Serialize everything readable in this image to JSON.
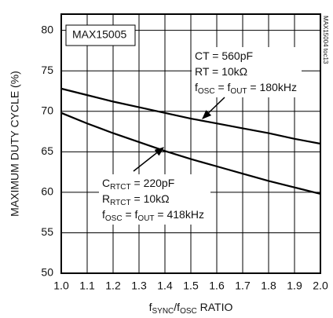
{
  "chart_data": {
    "type": "line",
    "ylabel": "MAXIMUM DUTY CYCLE (%)",
    "xlabel": [
      {
        "text": "f",
        "sub": false
      },
      {
        "text": "SYNC",
        "sub": true
      },
      {
        "text": "/f",
        "sub": false
      },
      {
        "text": "OSC",
        "sub": true
      },
      {
        "text": " RATIO",
        "sub": false
      }
    ],
    "label_box": "MAX15005",
    "side_note": "MAX15004 toc13",
    "x": [
      1.0,
      1.1,
      1.2,
      1.3,
      1.4,
      1.5,
      1.6,
      1.7,
      1.8,
      1.9,
      2.0
    ],
    "series": [
      {
        "color": "#000000",
        "values": [
          72.8,
          72.0,
          71.2,
          70.5,
          69.8,
          69.1,
          68.5,
          67.9,
          67.3,
          66.6,
          66.0
        ]
      },
      {
        "color": "#000000",
        "values": [
          69.8,
          68.5,
          67.3,
          66.2,
          65.1,
          64.1,
          63.2,
          62.3,
          61.4,
          60.6,
          59.8
        ]
      }
    ],
    "xlim": [
      1.0,
      2.0
    ],
    "xticks": [
      {
        "value": 1.0,
        "label": "1.0"
      },
      1.1,
      1.2,
      1.3,
      1.4,
      1.5,
      1.6,
      1.7,
      1.8,
      1.9,
      {
        "value": 2.0,
        "label": "2.0"
      }
    ],
    "ylim": [
      50,
      82
    ],
    "yticks": [
      50,
      55,
      60,
      65,
      70,
      75,
      80
    ],
    "grid": true,
    "annotations": [
      {
        "lines": [
          [
            {
              "text": "CT = 560pF",
              "sub": false
            }
          ],
          [
            {
              "text": "RT = 10kΩ",
              "sub": false
            }
          ],
          [
            {
              "text": "f",
              "sub": false
            },
            {
              "text": "OSC",
              "sub": true
            },
            {
              "text": " = f",
              "sub": false
            },
            {
              "text": "OUT",
              "sub": true
            },
            {
              "text": " = 180kHz",
              "sub": false
            }
          ]
        ]
      },
      {
        "lines": [
          [
            {
              "text": "C",
              "sub": false
            },
            {
              "text": "RTCT",
              "sub": true
            },
            {
              "text": " = 220pF",
              "sub": false
            }
          ],
          [
            {
              "text": "R",
              "sub": false
            },
            {
              "text": "RTCT",
              "sub": true
            },
            {
              "text": " = 10kΩ",
              "sub": false
            }
          ],
          [
            {
              "text": "f",
              "sub": false
            },
            {
              "text": "OSC",
              "sub": true
            },
            {
              "text": " = f",
              "sub": false
            },
            {
              "text": "OUT",
              "sub": true
            },
            {
              "text": " = 418kHz",
              "sub": false
            }
          ]
        ]
      }
    ]
  }
}
